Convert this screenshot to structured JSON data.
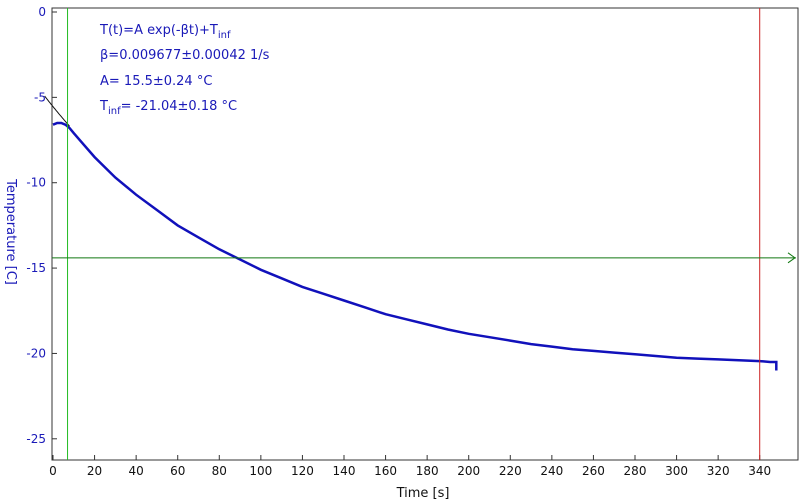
{
  "chart_data": {
    "type": "line",
    "xlabel": "Time [s]",
    "ylabel": "Temperature [C]",
    "xlim": [
      0,
      350
    ],
    "ylim": [
      -26,
      0
    ],
    "xticks": [
      0,
      20,
      40,
      60,
      80,
      100,
      120,
      140,
      160,
      180,
      200,
      220,
      240,
      260,
      280,
      300,
      320,
      340
    ],
    "yticks": [
      0,
      -5,
      -10,
      -15,
      -20,
      -25
    ],
    "grid": false,
    "colors": {
      "data": "#1111bb",
      "fit": "#111111",
      "cursor_left": "#22bb22",
      "cursor_right": "#cc2222",
      "cursor_h": "#117711",
      "text": "#1a1ab8"
    },
    "fit_formula": {
      "equation_main": "T(t)=A exp(-βt)+T",
      "equation_sub": "inf",
      "beta_line": "β=0.009677±0.00042 1/s",
      "A_line": "A= 15.5±0.24 °C",
      "tinf_main": "T",
      "tinf_sub": "inf",
      "tinf_value": "= -21.04±0.18 °C"
    },
    "fit_params": {
      "A": 15.5,
      "beta": 0.009677,
      "T_inf": -21.04
    },
    "cursors": {
      "vertical_left_x": 7,
      "vertical_right_x": 340,
      "horizontal_y": -14.4
    },
    "series": [
      {
        "x": [
          0,
          2,
          4,
          6,
          8,
          10,
          15,
          20,
          25,
          30,
          40,
          50,
          60,
          70,
          80,
          90,
          100,
          110,
          120,
          130,
          140,
          150,
          160,
          170,
          180,
          190,
          200,
          210,
          220,
          230,
          240,
          250,
          260,
          270,
          280,
          290,
          300,
          310,
          320,
          330,
          340,
          345,
          348,
          348
        ],
        "y": [
          -6.6,
          -6.5,
          -6.5,
          -6.6,
          -6.8,
          -7.1,
          -7.8,
          -8.5,
          -9.1,
          -9.7,
          -10.7,
          -11.6,
          -12.5,
          -13.2,
          -13.9,
          -14.5,
          -15.1,
          -15.6,
          -16.1,
          -16.5,
          -16.9,
          -17.3,
          -17.7,
          -18.0,
          -18.3,
          -18.6,
          -18.85,
          -19.05,
          -19.25,
          -19.45,
          -19.6,
          -19.75,
          -19.85,
          -19.95,
          -20.05,
          -20.15,
          -20.25,
          -20.3,
          -20.35,
          -20.4,
          -20.45,
          -20.5,
          -20.5,
          -21.0
        ]
      }
    ]
  }
}
